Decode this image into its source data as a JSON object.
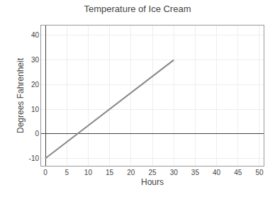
{
  "chart_data": {
    "type": "line",
    "title": "Temperature of Ice Cream",
    "xlabel": "Hours",
    "ylabel": "Degrees Fahrenheit",
    "x": [
      0,
      30
    ],
    "values": [
      -10,
      30
    ],
    "color": "#888888",
    "xlim": [
      -1,
      51
    ],
    "ylim": [
      -13,
      44
    ],
    "xticks": [
      0,
      5,
      10,
      15,
      20,
      25,
      30,
      35,
      40,
      45,
      50
    ],
    "yticks": [
      -10,
      0,
      10,
      20,
      30,
      40
    ],
    "grid": true
  }
}
